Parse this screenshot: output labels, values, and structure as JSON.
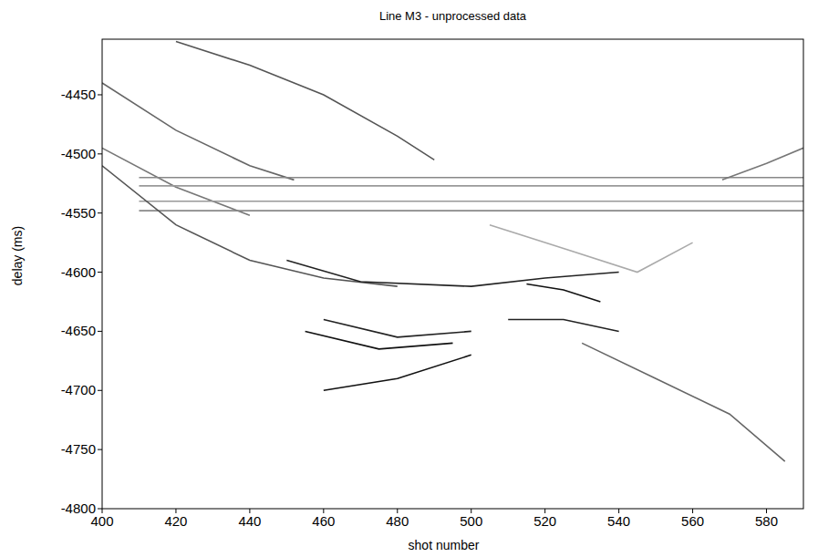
{
  "chart_data": {
    "type": "line",
    "title": "Line M3 - unprocessed data",
    "x_label": "shot number",
    "y_label": "delay (ms)",
    "xlim": [
      400,
      590
    ],
    "ylim": [
      -4800,
      -4403
    ],
    "xticks": [
      400,
      420,
      440,
      460,
      480,
      500,
      520,
      540,
      560,
      580
    ],
    "yticks": [
      -4450,
      -4500,
      -4550,
      -4600,
      -4650,
      -4700,
      -4750,
      -4800
    ],
    "grid": false,
    "series": [
      {
        "color": "#555555",
        "x": [
          420,
          440,
          460,
          480,
          490
        ],
        "values": [
          -4405,
          -4425,
          -4450,
          -4485,
          -4505
        ]
      },
      {
        "color": "#666666",
        "x": [
          400,
          420,
          440,
          452
        ],
        "values": [
          -4440,
          -4480,
          -4510,
          -4522
        ]
      },
      {
        "color": "#777777",
        "x": [
          400,
          420,
          440
        ],
        "values": [
          -4495,
          -4528,
          -4552
        ]
      },
      {
        "color": "#888888",
        "x": [
          410,
          590
        ],
        "values": [
          -4520,
          -4520
        ]
      },
      {
        "color": "#999999",
        "x": [
          410,
          590
        ],
        "values": [
          -4527,
          -4527
        ]
      },
      {
        "color": "#999999",
        "x": [
          410,
          590
        ],
        "values": [
          -4540,
          -4540
        ]
      },
      {
        "color": "#888888",
        "x": [
          410,
          590
        ],
        "values": [
          -4548,
          -4548
        ]
      },
      {
        "color": "#777777",
        "x": [
          568,
          580,
          590
        ],
        "values": [
          -4522,
          -4508,
          -4495
        ]
      },
      {
        "color": "#555555",
        "x": [
          400,
          420,
          440,
          460,
          480
        ],
        "values": [
          -4510,
          -4560,
          -4590,
          -4605,
          -4612
        ]
      },
      {
        "color": "#222222",
        "x": [
          450,
          470,
          500,
          520,
          540
        ],
        "values": [
          -4590,
          -4608,
          -4612,
          -4605,
          -4600
        ]
      },
      {
        "color": "#111111",
        "x": [
          455,
          475,
          495
        ],
        "values": [
          -4650,
          -4665,
          -4660
        ]
      },
      {
        "color": "#111111",
        "x": [
          460,
          480,
          500
        ],
        "values": [
          -4700,
          -4690,
          -4670
        ]
      },
      {
        "color": "#222222",
        "x": [
          460,
          480,
          500
        ],
        "values": [
          -4640,
          -4655,
          -4650
        ]
      },
      {
        "color": "#111111",
        "x": [
          515,
          525,
          535
        ],
        "values": [
          -4610,
          -4615,
          -4625
        ]
      },
      {
        "color": "#222222",
        "x": [
          510,
          525,
          540
        ],
        "values": [
          -4640,
          -4640,
          -4650
        ]
      },
      {
        "color": "#666666",
        "x": [
          530,
          550,
          570,
          585
        ],
        "values": [
          -4660,
          -4690,
          -4720,
          -4760
        ]
      },
      {
        "color": "#aaaaaa",
        "x": [
          505,
          525,
          545,
          560
        ],
        "values": [
          -4560,
          -4580,
          -4600,
          -4575
        ]
      }
    ]
  }
}
